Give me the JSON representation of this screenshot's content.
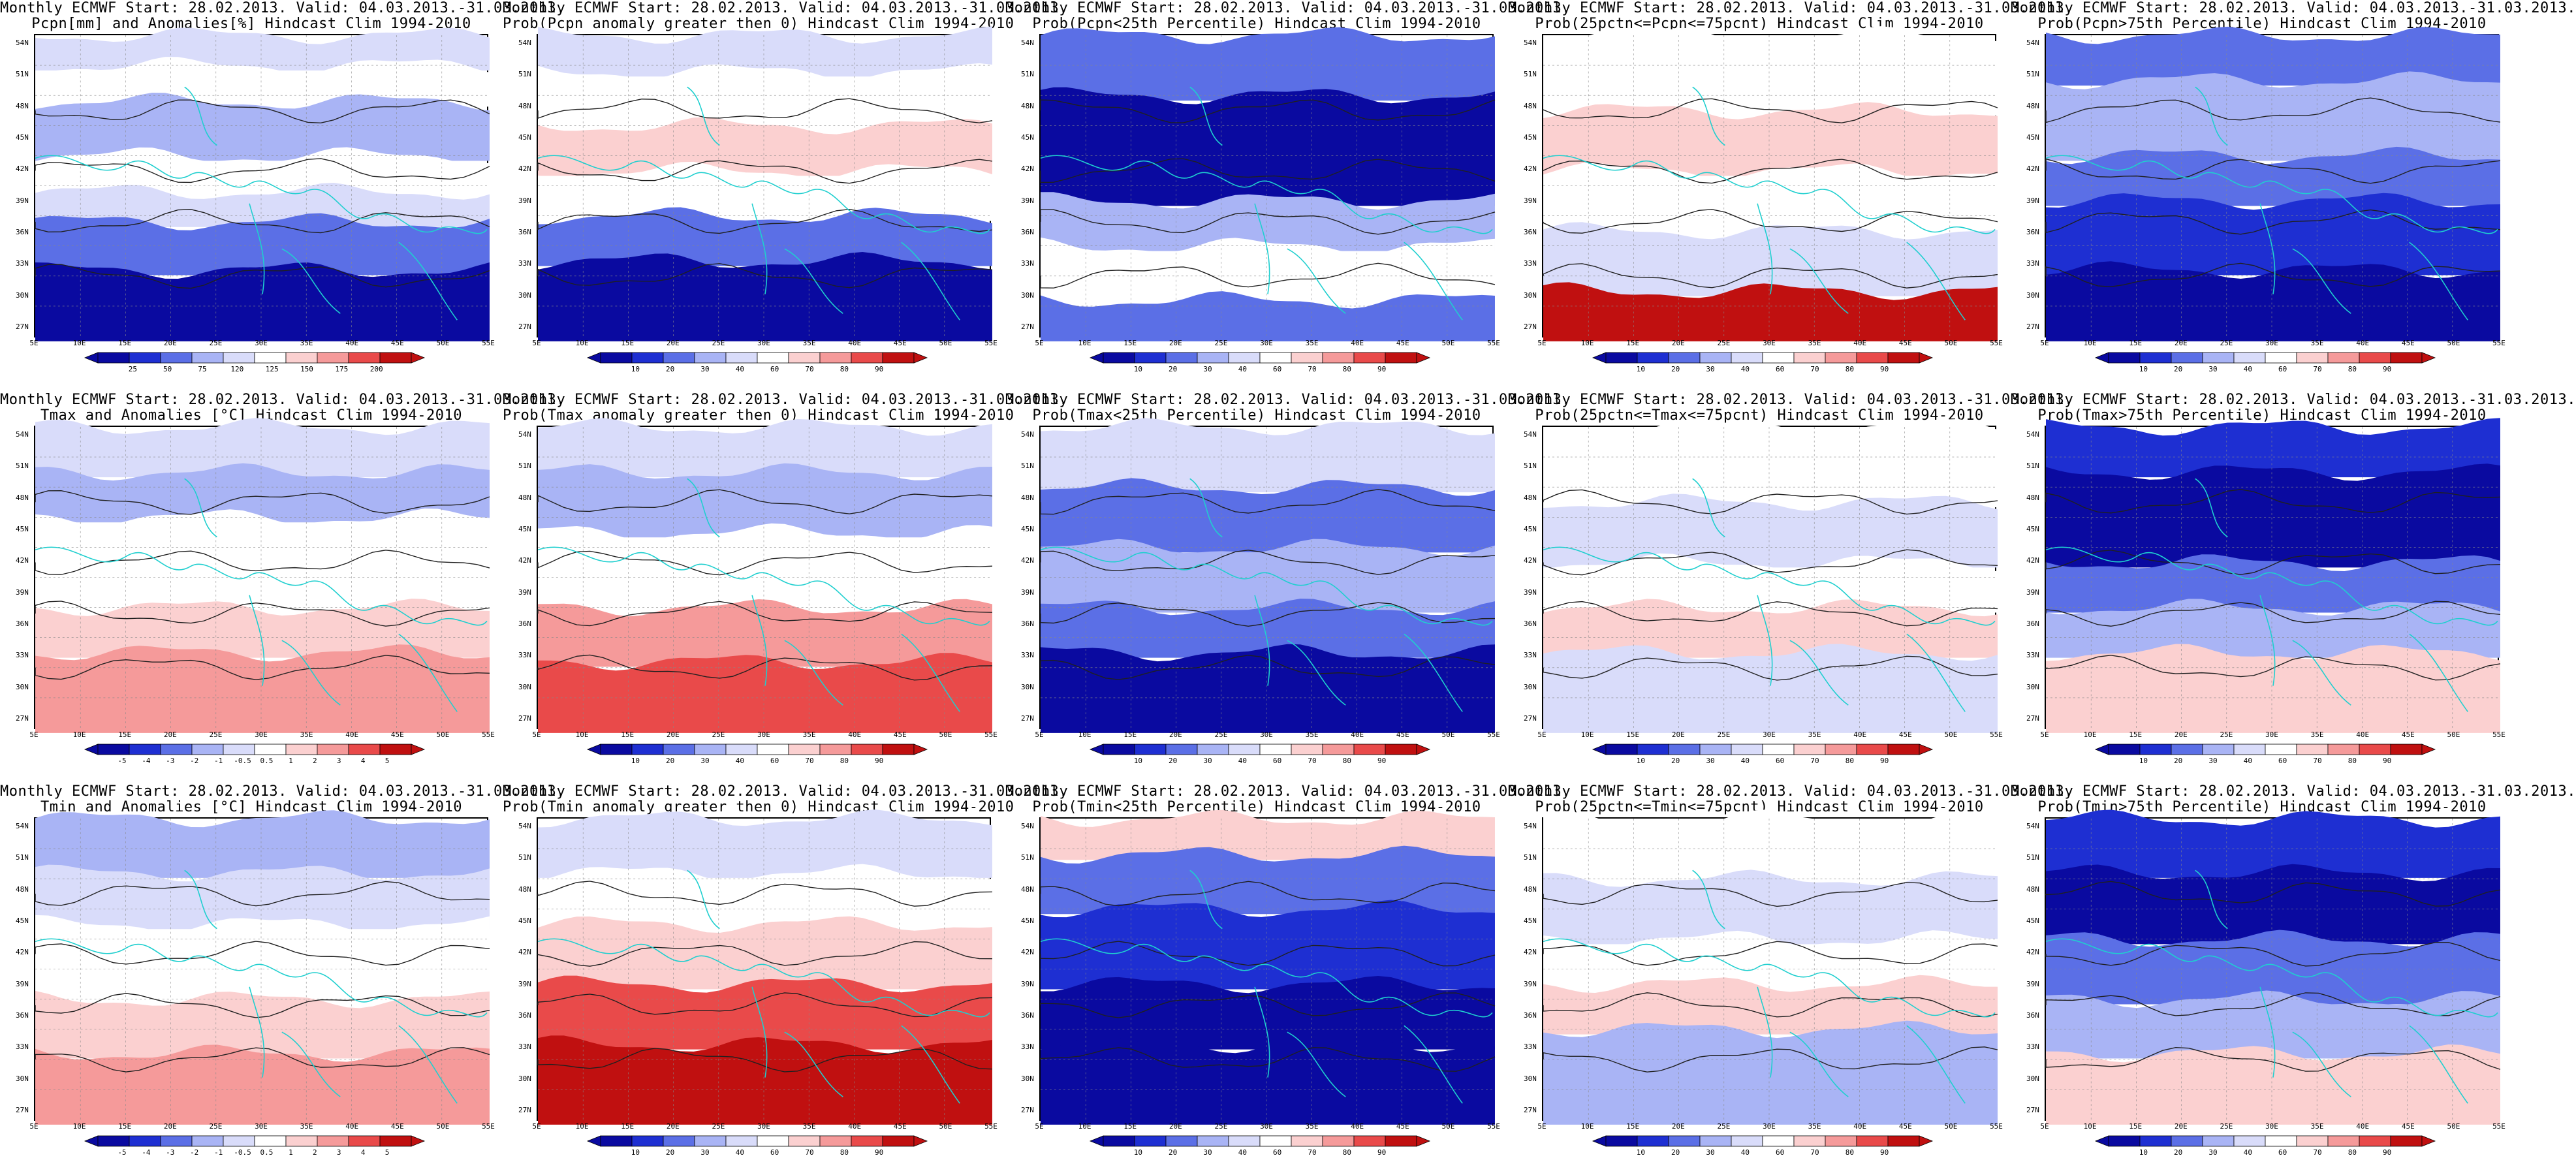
{
  "x_ticks": [
    "5E",
    "10E",
    "15E",
    "20E",
    "25E",
    "30E",
    "35E",
    "40E",
    "45E",
    "50E",
    "55E"
  ],
  "y_ticks": [
    "54N",
    "51N",
    "48N",
    "45N",
    "42N",
    "39N",
    "36N",
    "33N",
    "30N",
    "27N"
  ],
  "palette": {
    "dark_blue": "#0a0aa0",
    "blue": "#1e2fd2",
    "mid_blue": "#5b6fe6",
    "light_blue": "#a9b4f5",
    "pale_blue": "#d9dcfa",
    "white": "#ffffff",
    "pale_red": "#fbd0d0",
    "light_red": "#f59a9a",
    "red": "#e94a4a",
    "dark_red": "#c01010",
    "contour": "#202020",
    "coast": "#1fcfcf"
  },
  "panels": [
    {
      "title1": "Monthly ECMWF Start: 28.02.2013. Valid: 04.03.2013.-31.03.2013.",
      "title2": "Pcpn[mm] and Anomalies[%] Hindcast Clim 1994-2010",
      "scale": [
        "25",
        "50",
        "75",
        "120",
        "125",
        "150",
        "175",
        "200"
      ],
      "pattern": "pcpn_anom"
    },
    {
      "title1": "Monthly ECMWF Start: 28.02.2013. Valid: 04.03.2013.-31.03.2013.",
      "title2": "Prob(Pcpn anomaly greater then 0) Hindcast Clim 1994-2010",
      "scale": [
        "10",
        "20",
        "30",
        "40",
        "60",
        "70",
        "80",
        "90"
      ],
      "pattern": "pcpn_prob"
    },
    {
      "title1": "Monthly ECMWF Start: 28.02.2013. Valid: 04.03.2013.-31.03.2013.",
      "title2": "Prob(Pcpn<25th Percentile) Hindcast Clim 1994-2010",
      "scale": [
        "10",
        "20",
        "30",
        "40",
        "60",
        "70",
        "80",
        "90"
      ],
      "pattern": "pcpn_low"
    },
    {
      "title1": "Monthly ECMWF Start: 28.02.2013. Valid: 04.03.2013.-31.03.2013.",
      "title2": "Prob(25pctn<=Pcpn<=75pcnt) Hindcast Clim 1994-2010",
      "scale": [
        "10",
        "20",
        "30",
        "40",
        "60",
        "70",
        "80",
        "90"
      ],
      "pattern": "pcpn_mid"
    },
    {
      "title1": "Monthly ECMWF Start: 28.02.2013. Valid: 04.03.2013.-31.03.2013.",
      "title2": "Prob(Pcpn>75th Percentile) Hindcast Clim 1994-2010",
      "scale": [
        "10",
        "20",
        "30",
        "40",
        "60",
        "70",
        "80",
        "90"
      ],
      "pattern": "pcpn_high"
    },
    {
      "title1": "Monthly ECMWF Start: 28.02.2013. Valid: 04.03.2013.-31.03.2013.",
      "title2": "Tmax and Anomalies [°C] Hindcast Clim 1994-2010",
      "scale": [
        "-5",
        "-4",
        "-3",
        "-2",
        "-1",
        "-0.5",
        "0.5",
        "1",
        "2",
        "3",
        "4",
        "5"
      ],
      "pattern": "tmax_anom"
    },
    {
      "title1": "Monthly ECMWF Start: 28.02.2013. Valid: 04.03.2013.-31.03.2013.",
      "title2": "Prob(Tmax anomaly greater then 0) Hindcast Clim 1994-2010",
      "scale": [
        "10",
        "20",
        "30",
        "40",
        "60",
        "70",
        "80",
        "90"
      ],
      "pattern": "tmax_prob"
    },
    {
      "title1": "Monthly ECMWF Start: 28.02.2013. Valid: 04.03.2013.-31.03.2013.",
      "title2": "Prob(Tmax<25th Percentile) Hindcast Clim 1994-2010",
      "scale": [
        "10",
        "20",
        "30",
        "40",
        "60",
        "70",
        "80",
        "90"
      ],
      "pattern": "tmax_low"
    },
    {
      "title1": "Monthly ECMWF Start: 28.02.2013. Valid: 04.03.2013.-31.03.2013.",
      "title2": "Prob(25pctn<=Tmax<=75pcnt) Hindcast Clim 1994-2010",
      "scale": [
        "10",
        "20",
        "30",
        "40",
        "60",
        "70",
        "80",
        "90"
      ],
      "pattern": "tmax_mid"
    },
    {
      "title1": "Monthly ECMWF Start: 28.02.2013. Valid: 04.03.2013.-31.03.2013.",
      "title2": "Prob(Tmax>75th Percentile) Hindcast Clim 1994-2010",
      "scale": [
        "10",
        "20",
        "30",
        "40",
        "60",
        "70",
        "80",
        "90"
      ],
      "pattern": "tmax_high"
    },
    {
      "title1": "Monthly ECMWF Start: 28.02.2013. Valid: 04.03.2013.-31.03.2013.",
      "title2": "Tmin and Anomalies [°C] Hindcast Clim 1994-2010",
      "scale": [
        "-5",
        "-4",
        "-3",
        "-2",
        "-1",
        "-0.5",
        "0.5",
        "1",
        "2",
        "3",
        "4",
        "5"
      ],
      "pattern": "tmin_anom"
    },
    {
      "title1": "Monthly ECMWF Start: 28.02.2013. Valid: 04.03.2013.-31.03.2013.",
      "title2": "Prob(Tmin anomaly greater then 0) Hindcast Clim 1994-2010",
      "scale": [
        "10",
        "20",
        "30",
        "40",
        "60",
        "70",
        "80",
        "90"
      ],
      "pattern": "tmin_prob"
    },
    {
      "title1": "Monthly ECMWF Start: 28.02.2013. Valid: 04.03.2013.-31.03.2013.",
      "title2": "Prob(Tmin<25th Percentile) Hindcast Clim 1994-2010",
      "scale": [
        "10",
        "20",
        "30",
        "40",
        "60",
        "70",
        "80",
        "90"
      ],
      "pattern": "tmin_low"
    },
    {
      "title1": "Monthly ECMWF Start: 28.02.2013. Valid: 04.03.2013.-31.03.2013.",
      "title2": "Prob(25pctn<=Tmin<=75pcnt) Hindcast Clim 1994-2010",
      "scale": [
        "10",
        "20",
        "30",
        "40",
        "60",
        "70",
        "80",
        "90"
      ],
      "pattern": "tmin_mid"
    },
    {
      "title1": "Monthly ECMWF Start: 28.02.2013. Valid: 04.03.2013.-31.03.2013.",
      "title2": "Prob(Tmin>75th Percentile) Hindcast Clim 1994-2010",
      "scale": [
        "10",
        "20",
        "30",
        "40",
        "60",
        "70",
        "80",
        "90"
      ],
      "pattern": "tmin_high"
    }
  ]
}
